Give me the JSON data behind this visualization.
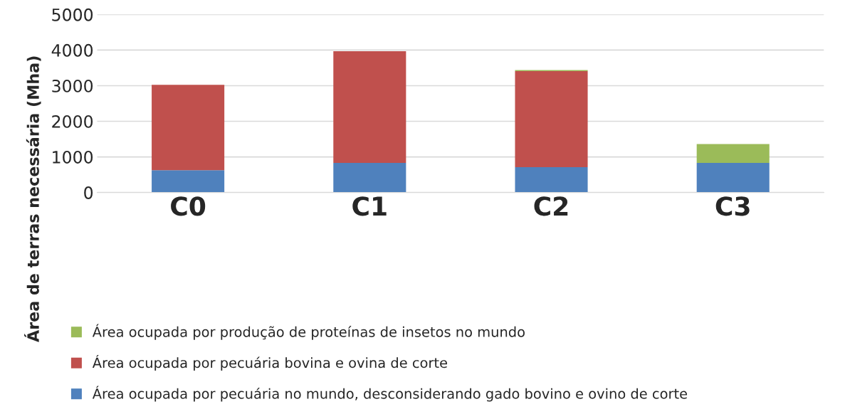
{
  "chart_data": {
    "type": "bar",
    "stacked": true,
    "ylabel": "Área de terras necessária (Mha)",
    "categories": [
      "C0",
      "C1",
      "C2",
      "C3"
    ],
    "series": [
      {
        "name": "Área ocupada por pecuária no mundo, desconsiderando gado bovino e ovino de corte",
        "color": "#4f81bd",
        "values": [
          625,
          830,
          710,
          830
        ]
      },
      {
        "name": "Área ocupada por pecuária bovina e ovina de corte",
        "color": "#c0504d",
        "values": [
          2400,
          3140,
          2700,
          0
        ]
      },
      {
        "name": "Área ocupada por produção de proteínas de insetos no mundo",
        "color": "#9bbb59",
        "values": [
          0,
          0,
          30,
          530
        ]
      }
    ],
    "ylim": [
      0,
      5000
    ],
    "yticks": [
      0,
      1000,
      2000,
      3000,
      4000,
      5000
    ],
    "grid": "y",
    "legend": "bottom"
  }
}
